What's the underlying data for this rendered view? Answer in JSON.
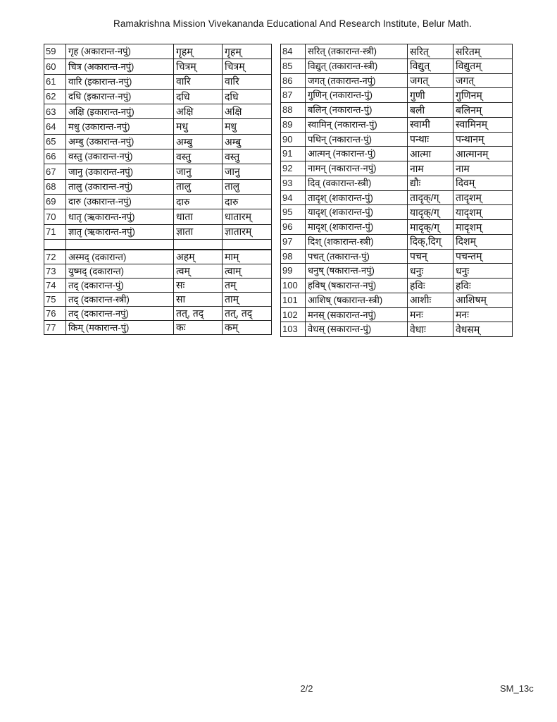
{
  "header": {
    "title": "Ramakrishna Mission Vivekananda Educational And Research Institute, Belur Math."
  },
  "tables": {
    "left": {
      "rows": [
        {
          "no": "59",
          "word": "गृह (अकारान्त-नपुं)",
          "form1": "गृहम्",
          "form2": "गृहम्"
        },
        {
          "no": "60",
          "word": "चित्र (अकारान्त-नपुं)",
          "form1": "चित्रम्",
          "form2": "चित्रम्"
        },
        {
          "no": "61",
          "word": "वारि (इकारान्त-नपुं)",
          "form1": "वारि",
          "form2": "वारि"
        },
        {
          "no": "62",
          "word": "दधि (इकारान्त-नपुं)",
          "form1": "दधि",
          "form2": "दधि"
        },
        {
          "no": "63",
          "word": "अक्षि (इकारान्त-नपुं)",
          "form1": "अक्षि",
          "form2": "अक्षि"
        },
        {
          "no": "64",
          "word": "मधु (उकारान्त-नपुं)",
          "form1": "मधु",
          "form2": "मधु"
        },
        {
          "no": "65",
          "word": "अम्बु (उकारान्त-नपुं)",
          "form1": "अम्बु",
          "form2": "अम्बु"
        },
        {
          "no": "66",
          "word": "वस्तु (उकारान्त-नपुं)",
          "form1": "वस्तु",
          "form2": "वस्तु"
        },
        {
          "no": "67",
          "word": "जानु (उकारान्त-नपुं)",
          "form1": "जानु",
          "form2": "जानु"
        },
        {
          "no": "68",
          "word": "तालु (उकारान्त-नपुं)",
          "form1": "तालु",
          "form2": "तालु"
        },
        {
          "no": "69",
          "word": "दारु (उकारान्त-नपुं)",
          "form1": "दारु",
          "form2": "दारु"
        },
        {
          "no": "70",
          "word": "धातृ (ऋकारान्त-नपुं)",
          "form1": "धाता",
          "form2": "धातारम्"
        },
        {
          "no": "71",
          "word": "ज्ञातृ (ऋकारान्त-नपुं)",
          "form1": "ज्ञाता",
          "form2": "ज्ञातारम्"
        },
        {
          "no": "",
          "word": "",
          "form1": "",
          "form2": ""
        },
        {
          "no": "72",
          "word": "अस्मद् (दकारान्त)",
          "form1": "अहम्",
          "form2": "माम्"
        },
        {
          "no": "73",
          "word": "युष्मद् (दकारान्त)",
          "form1": "त्वम्",
          "form2": "त्वाम्"
        },
        {
          "no": "74",
          "word": "तद् (दकारान्त-पुं)",
          "form1": "सः",
          "form2": "तम्"
        },
        {
          "no": "75",
          "word": "तद् (दकारान्त-स्त्री)",
          "form1": "सा",
          "form2": "ताम्"
        },
        {
          "no": "76",
          "word": "तद् (दकारान्त-नपुं)",
          "form1": "तत्, तद्",
          "form2": "तत्, तद्"
        },
        {
          "no": "77",
          "word": "किम् (मकारान्त-पुं)",
          "form1": "कः",
          "form2": "कम्"
        }
      ]
    },
    "right": {
      "rows": [
        {
          "no": "84",
          "word": "सरित् (तकारान्त-स्त्री)",
          "form1": "सरित्",
          "form2": "सरितम्"
        },
        {
          "no": "85",
          "word": "विद्युत् (तकारान्त-स्त्री)",
          "form1": "विद्युत्",
          "form2": "विद्युतम्"
        },
        {
          "no": "86",
          "word": "जगत् (तकारान्त-नपुं)",
          "form1": "जगत्",
          "form2": "जगत्"
        },
        {
          "no": "87",
          "word": "गुणिन् (नकारान्त-पुं)",
          "form1": "गुणी",
          "form2": "गुणिनम्"
        },
        {
          "no": "88",
          "word": "बलिन् (नकारान्त-पुं)",
          "form1": "बली",
          "form2": "बलिनम्"
        },
        {
          "no": "89",
          "word": "स्वामिन् (नकारान्त-पुं)",
          "form1": "स्वामी",
          "form2": "स्वामिनम्"
        },
        {
          "no": "90",
          "word": "पथिन् (नकारान्त-पुं)",
          "form1": "पन्थाः",
          "form2": "पन्थानम्"
        },
        {
          "no": "91",
          "word": "आत्मन् (नकारान्त-पुं)",
          "form1": "आत्मा",
          "form2": "आत्मानम्"
        },
        {
          "no": "92",
          "word": "नामन् (नकारान्त-नपुं)",
          "form1": "नाम",
          "form2": "नाम"
        },
        {
          "no": "93",
          "word": "दिव् (वकारान्त-स्त्री)",
          "form1": "द्यौः",
          "form2": "दिवम्"
        },
        {
          "no": "94",
          "word": "तादृश् (शकारान्त-पुं)",
          "form1": "तादृक्/ग्",
          "form2": "तादृशम्"
        },
        {
          "no": "95",
          "word": "यादृश् (शकारान्त-पुं)",
          "form1": "यादृक्/ग्",
          "form2": "यादृशम्"
        },
        {
          "no": "96",
          "word": "मादृश् (शकारान्त-पुं)",
          "form1": "मादृक्/ग्",
          "form2": "मादृशम्"
        },
        {
          "no": "97",
          "word": "दिश् (शकारान्त-स्त्री)",
          "form1": "दिक्,दिग्",
          "form2": "दिशम्"
        },
        {
          "no": "98",
          "word": "पचत् (तकारान्त-पुं)",
          "form1": "पचन्",
          "form2": "पचन्तम्"
        },
        {
          "no": "99",
          "word": "धनुष् (षकारान्त-नपुं)",
          "form1": "धनुः",
          "form2": "धनुः"
        },
        {
          "no": "100",
          "word": "हविष् (षकारान्त-नपुं)",
          "form1": "हविः",
          "form2": "हविः"
        },
        {
          "no": "101",
          "word": "आशिष् (षकारान्त-स्त्री)",
          "form1": "आशीः",
          "form2": "आशिषम्"
        },
        {
          "no": "102",
          "word": "मनस् (सकारान्त-नपुं)",
          "form1": "मनः",
          "form2": "मनः"
        },
        {
          "no": "103",
          "word": "वेधस् (सकारान्त-पुं)",
          "form1": "वेधाः",
          "form2": "वेधसम्"
        }
      ]
    }
  },
  "footer": {
    "page_number": "2/2",
    "doc_code": "SM_13c"
  }
}
